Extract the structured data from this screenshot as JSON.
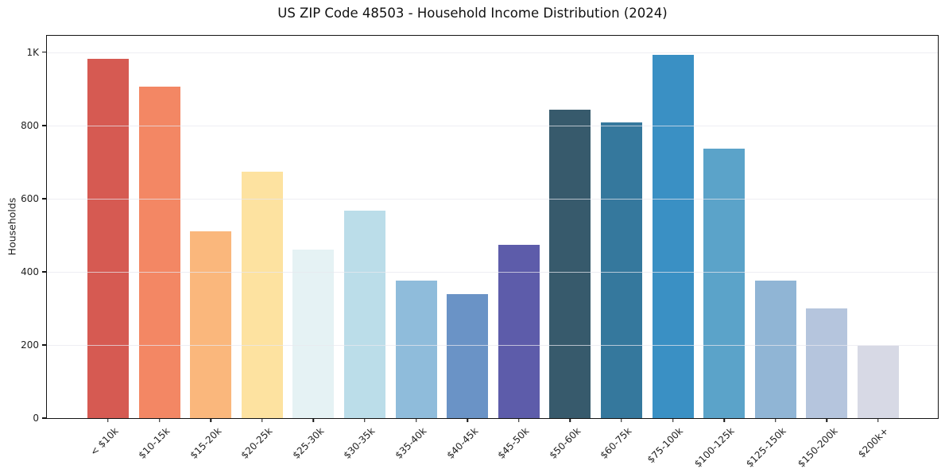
{
  "chart_data": {
    "type": "bar",
    "title": "US ZIP Code 48503 - Household Income Distribution (2024)",
    "xlabel": "",
    "ylabel": "Households",
    "categories": [
      "< $10k",
      "$10-15k",
      "$15-20k",
      "$20-25k",
      "$25-30k",
      "$30-35k",
      "$35-40k",
      "$40-45k",
      "$45-50k",
      "$50-60k",
      "$60-75k",
      "$75-100k",
      "$100-125k",
      "$125-150k",
      "$150-200k",
      "$200k+"
    ],
    "values": [
      982,
      906,
      511,
      673,
      461,
      567,
      376,
      338,
      474,
      842,
      808,
      992,
      736,
      376,
      299,
      197
    ],
    "bar_colors": [
      "#d65a52",
      "#f38764",
      "#fab77c",
      "#fde2a0",
      "#e5f2f4",
      "#bbdde9",
      "#8fbcdb",
      "#6a93c6",
      "#5d5caa",
      "#375a6c",
      "#35789d",
      "#3a90c4",
      "#5ba3c9",
      "#90b5d5",
      "#b5c5dd",
      "#d7d9e5"
    ],
    "ylim": [
      0,
      1045
    ],
    "yticks": [
      {
        "value": 0,
        "label": "0"
      },
      {
        "value": 200,
        "label": "200"
      },
      {
        "value": 400,
        "label": "400"
      },
      {
        "value": 600,
        "label": "600"
      },
      {
        "value": 800,
        "label": "800"
      },
      {
        "value": 1000,
        "label": "1K"
      }
    ],
    "grid": "horizontal",
    "legend": "none"
  }
}
